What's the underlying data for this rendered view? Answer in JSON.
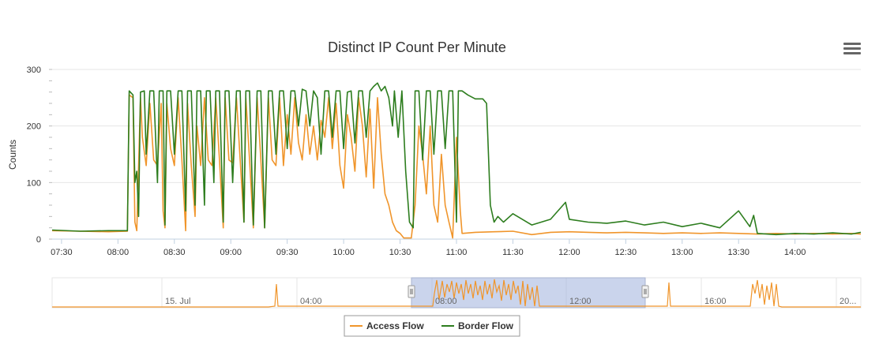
{
  "chart_data": {
    "type": "line",
    "title": "Distinct IP Count Per Minute",
    "ylabel": "Counts",
    "xlabel": "",
    "ylim": [
      0,
      300
    ],
    "yticks": [
      0,
      100,
      200,
      300
    ],
    "xlim": [
      "07:25",
      "14:35"
    ],
    "xticks": [
      "07:30",
      "08:00",
      "08:30",
      "09:00",
      "09:30",
      "10:00",
      "10:30",
      "11:00",
      "11:30",
      "12:00",
      "12:30",
      "13:00",
      "13:30",
      "14:00"
    ],
    "grid": true,
    "legend": "bottom-center",
    "series": [
      {
        "name": "Access Flow",
        "color": "#f0952b",
        "points": [
          [
            "07:25",
            15
          ],
          [
            "07:40",
            14
          ],
          [
            "07:55",
            13
          ],
          [
            "08:05",
            14
          ],
          [
            "08:06",
            255
          ],
          [
            "08:08",
            250
          ],
          [
            "08:09",
            30
          ],
          [
            "08:10",
            15
          ],
          [
            "08:12",
            250
          ],
          [
            "08:13",
            180
          ],
          [
            "08:15",
            130
          ],
          [
            "08:17",
            240
          ],
          [
            "08:19",
            140
          ],
          [
            "08:21",
            130
          ],
          [
            "08:23",
            240
          ],
          [
            "08:24",
            50
          ],
          [
            "08:25",
            20
          ],
          [
            "08:26",
            240
          ],
          [
            "08:28",
            160
          ],
          [
            "08:30",
            130
          ],
          [
            "08:32",
            250
          ],
          [
            "08:34",
            140
          ],
          [
            "08:36",
            15
          ],
          [
            "08:37",
            240
          ],
          [
            "08:39",
            130
          ],
          [
            "08:41",
            40
          ],
          [
            "08:42",
            200
          ],
          [
            "08:44",
            130
          ],
          [
            "08:46",
            250
          ],
          [
            "08:48",
            140
          ],
          [
            "08:50",
            130
          ],
          [
            "08:52",
            250
          ],
          [
            "08:54",
            140
          ],
          [
            "08:56",
            20
          ],
          [
            "08:57",
            250
          ],
          [
            "08:59",
            140
          ],
          [
            "09:01",
            135
          ],
          [
            "09:03",
            250
          ],
          [
            "09:05",
            140
          ],
          [
            "09:07",
            30
          ],
          [
            "09:08",
            250
          ],
          [
            "09:10",
            140
          ],
          [
            "09:12",
            20
          ],
          [
            "09:14",
            250
          ],
          [
            "09:16",
            140
          ],
          [
            "09:18",
            20
          ],
          [
            "09:20",
            250
          ],
          [
            "09:22",
            140
          ],
          [
            "09:24",
            130
          ],
          [
            "09:26",
            250
          ],
          [
            "09:28",
            130
          ],
          [
            "09:30",
            220
          ],
          [
            "09:32",
            150
          ],
          [
            "09:34",
            250
          ],
          [
            "09:36",
            170
          ],
          [
            "09:38",
            140
          ],
          [
            "09:40",
            220
          ],
          [
            "09:42",
            150
          ],
          [
            "09:44",
            200
          ],
          [
            "09:46",
            140
          ],
          [
            "09:48",
            210
          ],
          [
            "09:50",
            180
          ],
          [
            "09:52",
            250
          ],
          [
            "09:54",
            160
          ],
          [
            "09:56",
            240
          ],
          [
            "09:58",
            130
          ],
          [
            "10:00",
            90
          ],
          [
            "10:02",
            220
          ],
          [
            "10:04",
            180
          ],
          [
            "10:06",
            120
          ],
          [
            "10:08",
            250
          ],
          [
            "10:10",
            200
          ],
          [
            "10:12",
            110
          ],
          [
            "10:14",
            230
          ],
          [
            "10:16",
            90
          ],
          [
            "10:18",
            250
          ],
          [
            "10:20",
            150
          ],
          [
            "10:22",
            80
          ],
          [
            "10:24",
            60
          ],
          [
            "10:26",
            30
          ],
          [
            "10:28",
            15
          ],
          [
            "10:30",
            10
          ],
          [
            "10:32",
            2
          ],
          [
            "10:34",
            2
          ],
          [
            "10:36",
            2
          ],
          [
            "10:38",
            60
          ],
          [
            "10:40",
            200
          ],
          [
            "10:42",
            150
          ],
          [
            "10:44",
            80
          ],
          [
            "10:46",
            200
          ],
          [
            "10:48",
            60
          ],
          [
            "10:50",
            30
          ],
          [
            "10:52",
            150
          ],
          [
            "10:54",
            60
          ],
          [
            "10:56",
            30
          ],
          [
            "10:58",
            2
          ],
          [
            "11:00",
            180
          ],
          [
            "11:02",
            50
          ],
          [
            "11:03",
            10
          ],
          [
            "11:10",
            12
          ],
          [
            "11:20",
            13
          ],
          [
            "11:30",
            14
          ],
          [
            "11:40",
            8
          ],
          [
            "11:50",
            12
          ],
          [
            "12:00",
            13
          ],
          [
            "12:10",
            12
          ],
          [
            "12:20",
            11
          ],
          [
            "12:30",
            12
          ],
          [
            "12:40",
            11
          ],
          [
            "12:50",
            10
          ],
          [
            "13:00",
            11
          ],
          [
            "13:10",
            10
          ],
          [
            "13:20",
            11
          ],
          [
            "13:30",
            10
          ],
          [
            "13:40",
            9
          ],
          [
            "13:50",
            10
          ],
          [
            "14:00",
            9
          ],
          [
            "14:10",
            10
          ],
          [
            "14:20",
            9
          ],
          [
            "14:30",
            10
          ],
          [
            "14:35",
            9
          ]
        ]
      },
      {
        "name": "Border Flow",
        "color": "#2d7d1e",
        "points": [
          [
            "07:25",
            16
          ],
          [
            "07:40",
            14
          ],
          [
            "07:55",
            15
          ],
          [
            "08:05",
            15
          ],
          [
            "08:06",
            262
          ],
          [
            "08:08",
            255
          ],
          [
            "08:09",
            100
          ],
          [
            "08:10",
            120
          ],
          [
            "08:11",
            40
          ],
          [
            "08:12",
            260
          ],
          [
            "08:14",
            262
          ],
          [
            "08:15",
            150
          ],
          [
            "08:17",
            262
          ],
          [
            "08:19",
            262
          ],
          [
            "08:21",
            100
          ],
          [
            "08:22",
            262
          ],
          [
            "08:24",
            262
          ],
          [
            "08:25",
            25
          ],
          [
            "08:26",
            262
          ],
          [
            "08:28",
            262
          ],
          [
            "08:30",
            150
          ],
          [
            "08:32",
            262
          ],
          [
            "08:34",
            262
          ],
          [
            "08:36",
            50
          ],
          [
            "08:37",
            262
          ],
          [
            "08:39",
            262
          ],
          [
            "08:41",
            60
          ],
          [
            "08:42",
            262
          ],
          [
            "08:44",
            262
          ],
          [
            "08:46",
            60
          ],
          [
            "08:47",
            262
          ],
          [
            "08:49",
            262
          ],
          [
            "08:51",
            100
          ],
          [
            "08:52",
            262
          ],
          [
            "08:54",
            262
          ],
          [
            "08:56",
            30
          ],
          [
            "08:57",
            262
          ],
          [
            "08:59",
            262
          ],
          [
            "09:01",
            100
          ],
          [
            "09:03",
            262
          ],
          [
            "09:05",
            262
          ],
          [
            "09:07",
            30
          ],
          [
            "09:08",
            262
          ],
          [
            "09:10",
            262
          ],
          [
            "09:12",
            25
          ],
          [
            "09:14",
            262
          ],
          [
            "09:16",
            262
          ],
          [
            "09:18",
            20
          ],
          [
            "09:20",
            262
          ],
          [
            "09:22",
            262
          ],
          [
            "09:24",
            150
          ],
          [
            "09:26",
            262
          ],
          [
            "09:28",
            262
          ],
          [
            "09:30",
            160
          ],
          [
            "09:32",
            262
          ],
          [
            "09:34",
            262
          ],
          [
            "09:36",
            200
          ],
          [
            "09:38",
            265
          ],
          [
            "09:40",
            262
          ],
          [
            "09:42",
            200
          ],
          [
            "09:44",
            262
          ],
          [
            "09:46",
            250
          ],
          [
            "09:48",
            150
          ],
          [
            "09:50",
            262
          ],
          [
            "09:52",
            262
          ],
          [
            "09:54",
            180
          ],
          [
            "09:56",
            262
          ],
          [
            "09:58",
            262
          ],
          [
            "10:00",
            160
          ],
          [
            "10:02",
            260
          ],
          [
            "10:04",
            262
          ],
          [
            "10:06",
            170
          ],
          [
            "10:08",
            262
          ],
          [
            "10:10",
            262
          ],
          [
            "10:12",
            180
          ],
          [
            "10:14",
            262
          ],
          [
            "10:16",
            270
          ],
          [
            "10:18",
            276
          ],
          [
            "10:20",
            262
          ],
          [
            "10:22",
            270
          ],
          [
            "10:24",
            250
          ],
          [
            "10:26",
            200
          ],
          [
            "10:27",
            262
          ],
          [
            "10:29",
            180
          ],
          [
            "10:31",
            262
          ],
          [
            "10:33",
            120
          ],
          [
            "10:35",
            30
          ],
          [
            "10:37",
            20
          ],
          [
            "10:38",
            262
          ],
          [
            "10:40",
            262
          ],
          [
            "10:42",
            140
          ],
          [
            "10:44",
            262
          ],
          [
            "10:46",
            262
          ],
          [
            "10:48",
            150
          ],
          [
            "10:50",
            262
          ],
          [
            "10:52",
            262
          ],
          [
            "10:54",
            160
          ],
          [
            "10:56",
            262
          ],
          [
            "10:58",
            262
          ],
          [
            "11:00",
            30
          ],
          [
            "11:01",
            262
          ],
          [
            "11:03",
            262
          ],
          [
            "11:06",
            255
          ],
          [
            "11:10",
            248
          ],
          [
            "11:14",
            248
          ],
          [
            "11:16",
            240
          ],
          [
            "11:18",
            60
          ],
          [
            "11:20",
            30
          ],
          [
            "11:22",
            40
          ],
          [
            "11:25",
            30
          ],
          [
            "11:30",
            45
          ],
          [
            "11:40",
            25
          ],
          [
            "11:50",
            35
          ],
          [
            "11:58",
            65
          ],
          [
            "12:00",
            35
          ],
          [
            "12:10",
            30
          ],
          [
            "12:20",
            28
          ],
          [
            "12:30",
            32
          ],
          [
            "12:40",
            25
          ],
          [
            "12:50",
            30
          ],
          [
            "13:00",
            22
          ],
          [
            "13:10",
            28
          ],
          [
            "13:20",
            20
          ],
          [
            "13:30",
            50
          ],
          [
            "13:36",
            22
          ],
          [
            "13:38",
            42
          ],
          [
            "13:40",
            10
          ],
          [
            "13:50",
            8
          ],
          [
            "14:00",
            10
          ],
          [
            "14:10",
            9
          ],
          [
            "14:20",
            11
          ],
          [
            "14:30",
            9
          ],
          [
            "14:35",
            12
          ]
        ]
      }
    ]
  },
  "navigator": {
    "labels": [
      "15. Jul",
      "04:00",
      "08:00",
      "12:00",
      "16:00",
      "20..."
    ],
    "series_color": "#f0952b"
  },
  "legend": {
    "items": [
      {
        "label": "Access Flow",
        "color": "#f0952b"
      },
      {
        "label": "Border Flow",
        "color": "#2d7d1e"
      }
    ]
  },
  "menu": {
    "icon": "hamburger-menu-icon"
  }
}
